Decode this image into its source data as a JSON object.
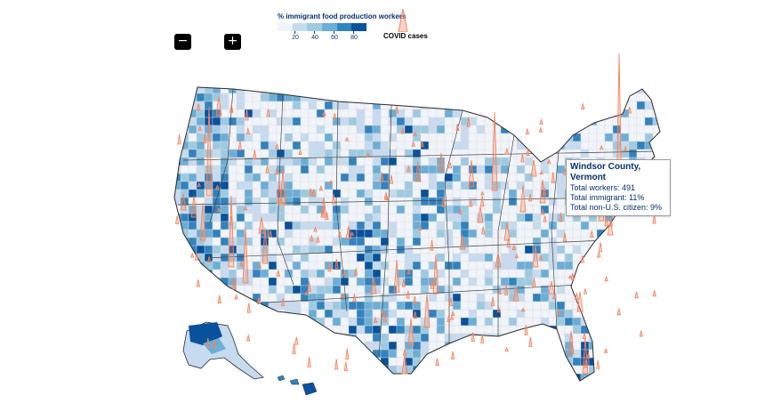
{
  "controls": {
    "zoom_out_label": "−",
    "zoom_in_label": "+"
  },
  "legend": {
    "title": "% immigrant food production workers",
    "ticks": [
      "20",
      "40",
      "60",
      "80"
    ],
    "colors": [
      "#f1f5fb",
      "#c6dbef",
      "#9ecae1",
      "#6baed6",
      "#3182bd",
      "#08519c"
    ],
    "covid_label": "COVID cases",
    "spike_color": "#f4845f"
  },
  "tooltip": {
    "title": "Windsor County, Vermont",
    "total_workers": "Total workers: 491",
    "total_immigrant": "Total immigrant: 11%",
    "non_citizen": "Total non-U.S. citizen: 9%"
  }
}
